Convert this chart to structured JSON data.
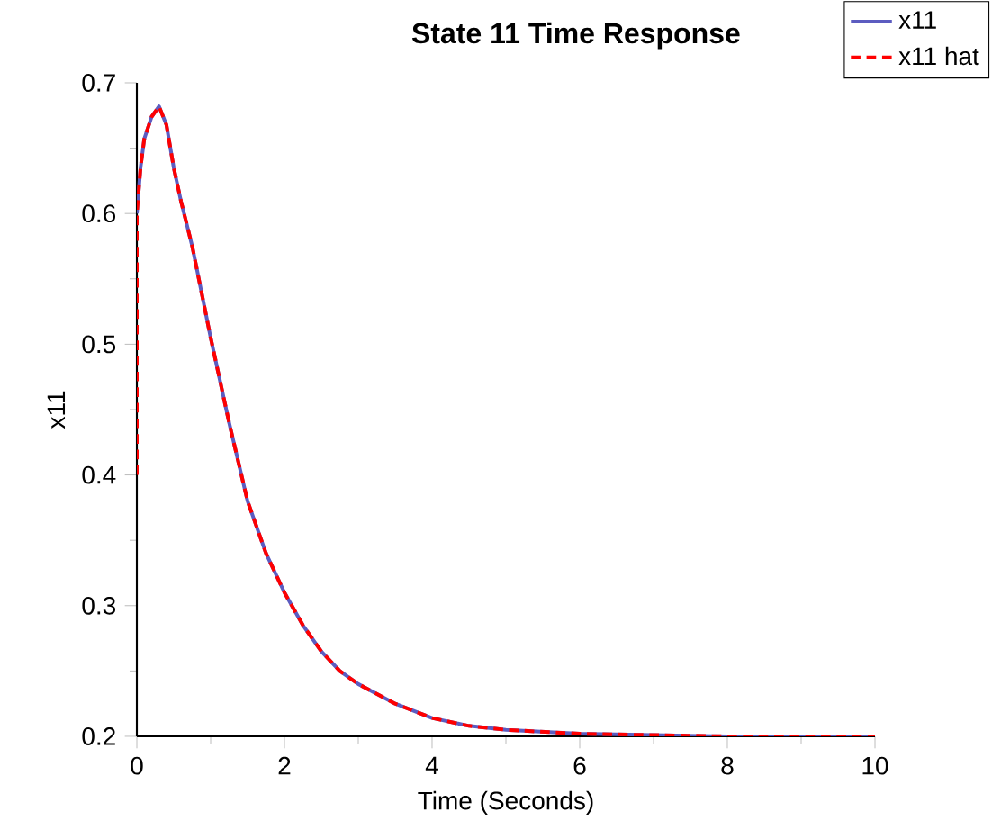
{
  "chart_data": {
    "type": "line",
    "title": "State 11 Time Response",
    "xlabel": "Time (Seconds)",
    "ylabel": "x11",
    "xlim": [
      0,
      10
    ],
    "ylim": [
      0.2,
      0.7
    ],
    "xticks": [
      0,
      2,
      4,
      6,
      8,
      10
    ],
    "yticks": [
      0.2,
      0.3,
      0.4,
      0.5,
      0.6,
      0.7
    ],
    "grid": false,
    "legend": "top right",
    "marker": "none",
    "series": [
      {
        "name": "x11",
        "color": "#5c5cc0",
        "line_style": "solid",
        "x": [
          0,
          0.05,
          0.1,
          0.2,
          0.3,
          0.4,
          0.5,
          0.6,
          0.75,
          0.9,
          1,
          1.25,
          1.5,
          1.75,
          2,
          2.25,
          2.5,
          2.75,
          3,
          3.5,
          4,
          4.5,
          5,
          6,
          7,
          8,
          9,
          10
        ],
        "values": [
          0.6,
          0.635,
          0.657,
          0.674,
          0.682,
          0.668,
          0.635,
          0.609,
          0.575,
          0.533,
          0.505,
          0.44,
          0.38,
          0.34,
          0.31,
          0.285,
          0.265,
          0.25,
          0.24,
          0.225,
          0.214,
          0.208,
          0.205,
          0.202,
          0.201,
          0.2,
          0.2,
          0.2
        ]
      },
      {
        "name": "x11 hat",
        "color": "#ff0000",
        "line_style": "dashed",
        "x": [
          0,
          0,
          0.05,
          0.1,
          0.2,
          0.3,
          0.4,
          0.5,
          0.6,
          0.75,
          0.9,
          1,
          1.25,
          1.5,
          1.75,
          2,
          2.25,
          2.5,
          2.75,
          3,
          3.5,
          4,
          4.5,
          5,
          6,
          7,
          8,
          9,
          10
        ],
        "values": [
          0.4,
          0.6,
          0.635,
          0.657,
          0.674,
          0.682,
          0.668,
          0.635,
          0.609,
          0.575,
          0.533,
          0.505,
          0.44,
          0.38,
          0.34,
          0.31,
          0.285,
          0.265,
          0.25,
          0.24,
          0.225,
          0.214,
          0.208,
          0.205,
          0.202,
          0.201,
          0.2,
          0.2,
          0.2
        ]
      }
    ]
  }
}
